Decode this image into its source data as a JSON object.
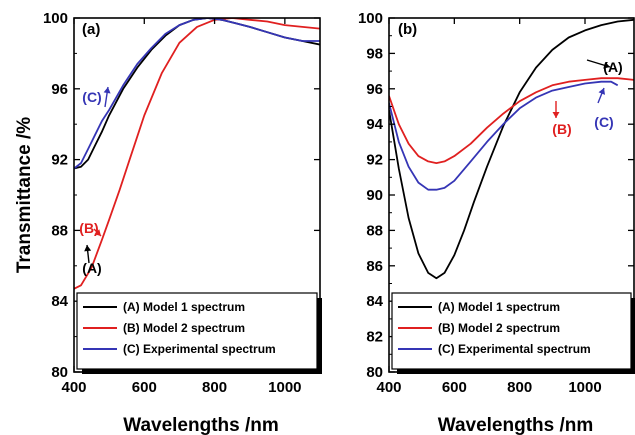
{
  "chart_data": [
    {
      "type": "line",
      "panel_label": "(a)",
      "xlabel": "Wavelengths /nm",
      "ylabel": "Transmittance /%",
      "xlim": [
        400,
        1100
      ],
      "ylim": [
        80,
        100
      ],
      "xticks": [
        400,
        600,
        800,
        1000
      ],
      "yticks": [
        80,
        84,
        88,
        92,
        96,
        100
      ],
      "grid": false,
      "legend_position": "bottom",
      "series": [
        {
          "name": "(A) Model 1 spectrum",
          "color": "#000000",
          "x": [
            400,
            420,
            440,
            460,
            480,
            500,
            540,
            580,
            620,
            660,
            700,
            740,
            780,
            820,
            860,
            900,
            950,
            1000,
            1050,
            1100
          ],
          "y": [
            91.5,
            91.6,
            92.0,
            92.8,
            93.6,
            94.5,
            96.0,
            97.2,
            98.2,
            99.0,
            99.6,
            99.9,
            100.0,
            99.9,
            99.7,
            99.5,
            99.2,
            98.9,
            98.7,
            98.5
          ]
        },
        {
          "name": "(B) Model 2 spectrum",
          "color": "#e02020",
          "x": [
            400,
            420,
            450,
            480,
            500,
            530,
            560,
            600,
            650,
            700,
            750,
            800,
            850,
            900,
            950,
            1000,
            1050,
            1100
          ],
          "y": [
            84.7,
            84.9,
            85.9,
            87.5,
            88.6,
            90.3,
            92.1,
            94.5,
            96.9,
            98.6,
            99.5,
            99.9,
            100.0,
            99.9,
            99.8,
            99.6,
            99.5,
            99.4
          ]
        },
        {
          "name": "(C) Experimental spectrum",
          "color": "#3535b5",
          "x": [
            400,
            420,
            440,
            460,
            480,
            500,
            540,
            580,
            620,
            660,
            700,
            740,
            780,
            820,
            860,
            900,
            950,
            1000,
            1050,
            1100
          ],
          "y": [
            91.5,
            91.8,
            92.6,
            93.4,
            94.2,
            94.8,
            96.2,
            97.4,
            98.3,
            99.1,
            99.6,
            99.9,
            100.0,
            99.9,
            99.7,
            99.5,
            99.2,
            98.9,
            98.7,
            98.7
          ]
        }
      ],
      "annotations": [
        {
          "text": "(C)",
          "color": "#3535b5",
          "x": 430,
          "y": 95.8
        },
        {
          "text": "(A)",
          "color": "#000000",
          "x": 450,
          "y": 90.5
        },
        {
          "text": "(B)",
          "color": "#e02020",
          "x": 440,
          "y": 88.0
        }
      ]
    },
    {
      "type": "line",
      "panel_label": "(b)",
      "xlabel": "Wavelengths /nm",
      "ylabel": "",
      "xlim": [
        400,
        1150
      ],
      "ylim": [
        80,
        100
      ],
      "xticks": [
        400,
        600,
        800,
        1000
      ],
      "yticks": [
        80,
        82,
        84,
        86,
        88,
        90,
        92,
        94,
        96,
        98,
        100
      ],
      "grid": false,
      "legend_position": "bottom",
      "series": [
        {
          "name": "(A) Model 1 spectrum",
          "color": "#000000",
          "x": [
            400,
            430,
            460,
            490,
            520,
            545,
            570,
            600,
            630,
            660,
            700,
            750,
            800,
            850,
            900,
            950,
            1000,
            1050,
            1100,
            1150
          ],
          "y": [
            94.8,
            91.5,
            88.7,
            86.7,
            85.6,
            85.3,
            85.6,
            86.6,
            88.0,
            89.6,
            91.6,
            93.9,
            95.8,
            97.2,
            98.2,
            98.9,
            99.3,
            99.6,
            99.8,
            99.9
          ]
        },
        {
          "name": "(B) Model 2 spectrum",
          "color": "#e02020",
          "x": [
            400,
            430,
            460,
            490,
            520,
            545,
            570,
            600,
            650,
            700,
            750,
            800,
            850,
            900,
            950,
            1000,
            1050,
            1100,
            1150
          ],
          "y": [
            95.6,
            94.0,
            92.9,
            92.2,
            91.9,
            91.8,
            91.9,
            92.2,
            92.9,
            93.8,
            94.6,
            95.3,
            95.8,
            96.2,
            96.4,
            96.5,
            96.6,
            96.6,
            96.5
          ]
        },
        {
          "name": "(C) Experimental spectrum",
          "color": "#3535b5",
          "x": [
            400,
            430,
            460,
            490,
            520,
            545,
            570,
            600,
            650,
            700,
            750,
            800,
            850,
            900,
            950,
            1000,
            1050,
            1080,
            1100
          ],
          "y": [
            95.2,
            93.0,
            91.6,
            90.7,
            90.3,
            90.3,
            90.4,
            90.8,
            91.9,
            93.0,
            94.0,
            94.9,
            95.5,
            95.9,
            96.1,
            96.3,
            96.4,
            96.4,
            96.2
          ]
        }
      ],
      "annotations": [
        {
          "text": "(A)",
          "color": "#000000",
          "x": 1085,
          "y": 98.9
        },
        {
          "text": "(B)",
          "color": "#e02020",
          "x": 940,
          "y": 93.2
        },
        {
          "text": "(C)",
          "color": "#3535b5",
          "x": 1045,
          "y": 93.8
        }
      ]
    }
  ]
}
